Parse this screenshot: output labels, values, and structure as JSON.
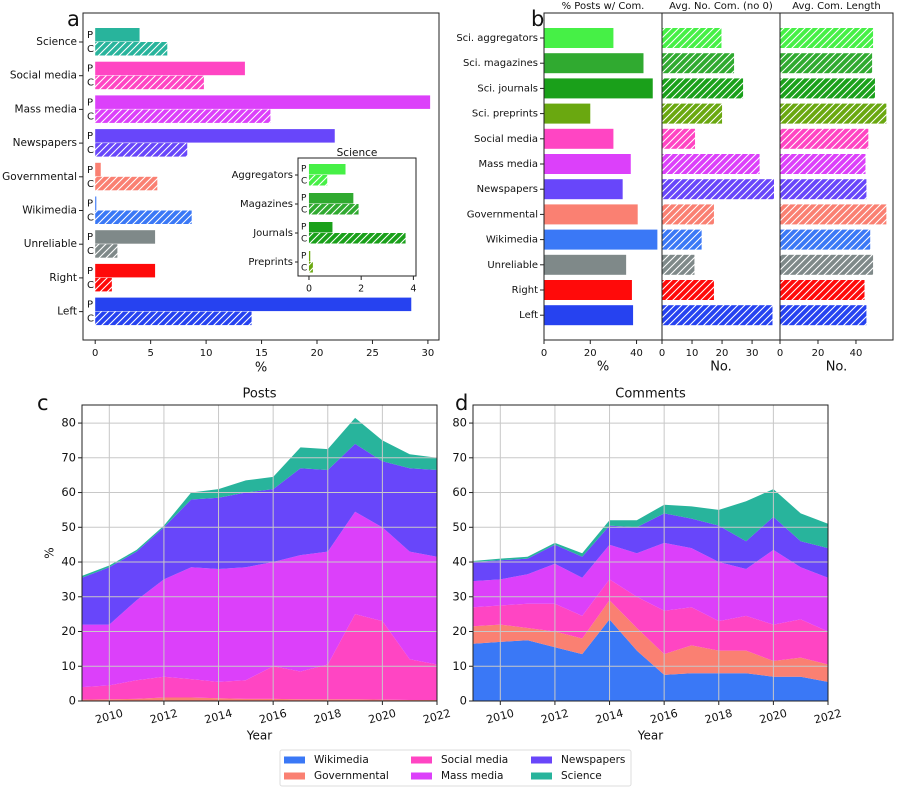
{
  "colors": {
    "Science": "#28b49c",
    "Social media": "#ff45c3",
    "Mass media": "#dc40fa",
    "Newspapers": "#6846fa",
    "Governmental": "#fa8072",
    "Wikimedia": "#3a78f6",
    "Unreliable": "#7f8989",
    "Right": "#ff0a0a",
    "Left": "#2642f0",
    "Sci. aggregators": "#46f046",
    "Sci. magazines": "#30aa30",
    "Sci. journals": "#1aa01a",
    "Sci. preprints": "#6aa810"
  },
  "chart_data": [
    {
      "panel": "a",
      "type": "bar",
      "orientation": "horizontal",
      "xlabel": "%",
      "xlim": [
        -1.1,
        31
      ],
      "xticks": [
        0,
        5,
        10,
        15,
        20,
        25,
        30
      ],
      "bar_labels": [
        "P",
        "C"
      ],
      "grid": false,
      "categories": [
        {
          "name": "Science",
          "P": 4.0,
          "C": 6.5
        },
        {
          "name": "Social media",
          "P": 13.5,
          "C": 9.8
        },
        {
          "name": "Mass media",
          "P": 30.2,
          "C": 15.8
        },
        {
          "name": "Newspapers",
          "P": 21.6,
          "C": 8.3
        },
        {
          "name": "Governmental",
          "P": 0.5,
          "C": 5.6
        },
        {
          "name": "Wikimedia",
          "P": 0.1,
          "C": 8.7
        },
        {
          "name": "Unreliable",
          "P": 5.4,
          "C": 2.0
        },
        {
          "name": "Right",
          "P": 5.4,
          "C": 1.5
        },
        {
          "name": "Left",
          "P": 28.5,
          "C": 14.1
        }
      ]
    },
    {
      "panel": "a-inset",
      "type": "bar",
      "orientation": "horizontal",
      "title": "Science",
      "xlim": [
        -0.42,
        4.1
      ],
      "xticks": [
        0,
        2,
        4
      ],
      "bar_labels": [
        "P",
        "C"
      ],
      "categories": [
        {
          "name": "Aggregators",
          "color_key": "Sci. aggregators",
          "P": 1.4,
          "C": 0.7
        },
        {
          "name": "Magazines",
          "color_key": "Sci. magazines",
          "P": 1.7,
          "C": 1.9
        },
        {
          "name": "Journals",
          "color_key": "Sci. journals",
          "P": 0.9,
          "C": 3.7
        },
        {
          "name": "Preprints",
          "color_key": "Sci. preprints",
          "P": 0.05,
          "C": 0.15
        }
      ]
    },
    {
      "panel": "b",
      "type": "bar",
      "orientation": "horizontal",
      "categories": [
        "Sci. aggregators",
        "Sci. magazines",
        "Sci. journals",
        "Sci. preprints",
        "Social media",
        "Mass media",
        "Newspapers",
        "Governmental",
        "Wikimedia",
        "Unreliable",
        "Right",
        "Left"
      ],
      "subplots": [
        {
          "title": "% Posts w/ Com.",
          "xlabel": "%",
          "xlim": [
            0,
            51
          ],
          "xticks": [
            0,
            20,
            40
          ],
          "hatched": false,
          "values": [
            30,
            43,
            47,
            20,
            30,
            37.5,
            34,
            40.5,
            49,
            35.5,
            38,
            38.5
          ]
        },
        {
          "title": "Avg. No. Com. (no 0)",
          "xlabel": "No.",
          "xlim": [
            0,
            39.3
          ],
          "xticks": [
            0,
            10,
            20,
            30
          ],
          "hatched": true,
          "values": [
            19.8,
            24,
            27,
            20,
            11,
            32.5,
            37.3,
            17.3,
            13.2,
            10.8,
            17.3,
            36.8
          ]
        },
        {
          "title": "Avg. Com. Length",
          "xlabel": "No.",
          "xlim": [
            0,
            59.5
          ],
          "xticks": [
            0,
            20,
            40
          ],
          "hatched": true,
          "values": [
            49,
            48.5,
            50,
            56,
            46.5,
            45,
            45.5,
            56,
            47.5,
            49,
            44.5,
            45.5
          ]
        }
      ]
    },
    {
      "panel": "c",
      "type": "area",
      "stacked": true,
      "title": "Posts",
      "xlabel": "Year",
      "ylabel": "%",
      "xlim": [
        2009,
        2022
      ],
      "ylim": [
        0,
        85.2
      ],
      "xticks": [
        2010,
        2012,
        2014,
        2016,
        2018,
        2020,
        2022
      ],
      "yticks": [
        0,
        10,
        20,
        30,
        40,
        50,
        60,
        70,
        80
      ],
      "grid": true,
      "x": [
        2009,
        2010,
        2011,
        2012,
        2013,
        2014,
        2015,
        2016,
        2017,
        2018,
        2019,
        2020,
        2021,
        2022
      ],
      "series": [
        {
          "name": "Wikimedia",
          "values": [
            0.1,
            0.1,
            0.1,
            0.1,
            0.1,
            0.1,
            0.1,
            0.1,
            0.1,
            0.1,
            0.1,
            0.1,
            0.1,
            0.1
          ]
        },
        {
          "name": "Governmental",
          "values": [
            0.3,
            0.4,
            0.5,
            0.9,
            0.9,
            0.7,
            0.5,
            0.5,
            0.4,
            0.4,
            0.4,
            0.3,
            0.2,
            0.2
          ]
        },
        {
          "name": "Social media",
          "values": [
            3.6,
            4.0,
            5.4,
            6.0,
            5.3,
            4.7,
            5.4,
            9.4,
            8.0,
            10.0,
            24.5,
            22.6,
            11.7,
            10.2
          ]
        },
        {
          "name": "Mass media",
          "values": [
            18,
            17.5,
            23,
            28,
            32.2,
            32.5,
            32.5,
            30,
            33.5,
            32.5,
            29.5,
            27,
            31,
            31
          ]
        },
        {
          "name": "Newspapers",
          "values": [
            13.5,
            16.5,
            14,
            15,
            19.5,
            20.5,
            21.5,
            21,
            25,
            23.5,
            19.5,
            19,
            24,
            25
          ]
        },
        {
          "name": "Science",
          "values": [
            0.5,
            0.5,
            0.5,
            0.5,
            2,
            2.5,
            3.5,
            3.5,
            6,
            6,
            7.5,
            6,
            4,
            3.5
          ]
        }
      ]
    },
    {
      "panel": "d",
      "type": "area",
      "stacked": true,
      "title": "Comments",
      "xlabel": "Year",
      "xlim": [
        2009,
        2022
      ],
      "ylim": [
        0,
        85.2
      ],
      "xticks": [
        2010,
        2012,
        2014,
        2016,
        2018,
        2020,
        2022
      ],
      "yticks": [
        0,
        10,
        20,
        30,
        40,
        50,
        60,
        70,
        80
      ],
      "grid": true,
      "x": [
        2009,
        2010,
        2011,
        2012,
        2013,
        2014,
        2015,
        2016,
        2017,
        2018,
        2019,
        2020,
        2021,
        2022
      ],
      "series": [
        {
          "name": "Wikimedia",
          "values": [
            16.5,
            17,
            17.5,
            15.5,
            13.5,
            23.5,
            14.5,
            7.5,
            8,
            8,
            8,
            7,
            7,
            5.5
          ]
        },
        {
          "name": "Governmental",
          "values": [
            5,
            5,
            3.5,
            4.5,
            4.5,
            5.5,
            6.5,
            6,
            8,
            6.5,
            6.5,
            4.5,
            5.5,
            5
          ]
        },
        {
          "name": "Social media",
          "values": [
            5.5,
            5.5,
            7,
            8,
            6.5,
            6,
            9,
            12.5,
            11,
            8.5,
            10,
            10.5,
            11,
            9.5
          ]
        },
        {
          "name": "Mass media",
          "values": [
            7.5,
            7.5,
            8.5,
            11.5,
            11,
            10,
            12.5,
            19.5,
            17,
            17,
            13.5,
            21.5,
            15,
            15.5
          ]
        },
        {
          "name": "Newspapers",
          "values": [
            5.5,
            5.5,
            4.5,
            5.5,
            6,
            5.5,
            7.5,
            8.5,
            8.5,
            10.5,
            8,
            9.5,
            7.5,
            8.5
          ]
        },
        {
          "name": "Science",
          "values": [
            0.3,
            0.5,
            0.5,
            0.5,
            1,
            1.5,
            2,
            2.5,
            3.5,
            4.5,
            11.5,
            8,
            8,
            7
          ]
        }
      ]
    }
  ],
  "panel_letters": [
    "a",
    "b",
    "c",
    "d"
  ],
  "legend": {
    "placement": "bottom-center",
    "items": [
      "Wikimedia",
      "Governmental",
      "Social media",
      "Mass media",
      "Newspapers",
      "Science"
    ]
  }
}
